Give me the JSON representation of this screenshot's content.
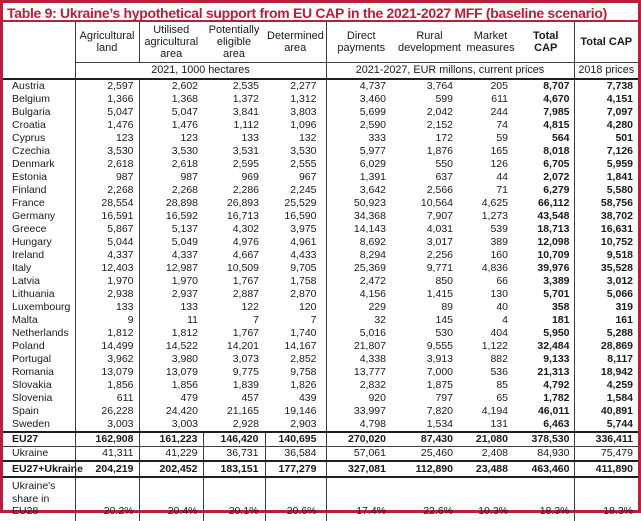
{
  "title": "Table 9: Ukraine’s hypothetical support from EU CAP in the 2021-2027 MFF (baseline scenario)",
  "colors": {
    "accent_red": "#b91f38",
    "grid_line": "#3b3b3b",
    "text": "#1a1a1a"
  },
  "table": {
    "column_headers": [
      "Agricultural land",
      "Utilised agricultural area",
      "Potentially eligible area",
      "Determined area",
      "Direct payments",
      "Rural development",
      "Market measures",
      "Total CAP",
      "Total CAP"
    ],
    "unit_headers": [
      "2021, 1000 hectares",
      "2021-2027, EUR millons, current prices",
      "2018 prices"
    ],
    "rows": [
      {
        "kind": "country",
        "label": "Austria",
        "values": [
          "2,597",
          "2,602",
          "2,535",
          "2,277",
          "4,737",
          "3,764",
          "205",
          "8,707",
          "7,738"
        ]
      },
      {
        "kind": "country",
        "label": "Belgium",
        "values": [
          "1,366",
          "1,368",
          "1,372",
          "1,312",
          "3,460",
          "599",
          "611",
          "4,670",
          "4,151"
        ]
      },
      {
        "kind": "country",
        "label": "Bulgaria",
        "values": [
          "5,047",
          "5,047",
          "3,841",
          "3,803",
          "5,699",
          "2,042",
          "244",
          "7,985",
          "7,097"
        ]
      },
      {
        "kind": "country",
        "label": "Croatia",
        "values": [
          "1,476",
          "1,476",
          "1,112",
          "1,096",
          "2,590",
          "2,152",
          "74",
          "4,815",
          "4,280"
        ]
      },
      {
        "kind": "country",
        "label": "Cyprus",
        "values": [
          "123",
          "123",
          "133",
          "132",
          "333",
          "172",
          "59",
          "564",
          "501"
        ]
      },
      {
        "kind": "country",
        "label": "Czechia",
        "values": [
          "3,530",
          "3,530",
          "3,531",
          "3,530",
          "5,977",
          "1,876",
          "165",
          "8,018",
          "7,126"
        ]
      },
      {
        "kind": "country",
        "label": "Denmark",
        "values": [
          "2,618",
          "2,618",
          "2,595",
          "2,555",
          "6,029",
          "550",
          "126",
          "6,705",
          "5,959"
        ]
      },
      {
        "kind": "country",
        "label": "Estonia",
        "values": [
          "987",
          "987",
          "969",
          "967",
          "1,391",
          "637",
          "44",
          "2,072",
          "1,841"
        ]
      },
      {
        "kind": "country",
        "label": "Finland",
        "values": [
          "2,268",
          "2,268",
          "2,286",
          "2,245",
          "3,642",
          "2,566",
          "71",
          "6,279",
          "5,580"
        ]
      },
      {
        "kind": "country",
        "label": "France",
        "values": [
          "28,554",
          "28,898",
          "26,893",
          "25,529",
          "50,923",
          "10,564",
          "4,625",
          "66,112",
          "58,756"
        ]
      },
      {
        "kind": "country",
        "label": "Germany",
        "values": [
          "16,591",
          "16,592",
          "16,713",
          "16,590",
          "34,368",
          "7,907",
          "1,273",
          "43,548",
          "38,702"
        ]
      },
      {
        "kind": "country",
        "label": "Greece",
        "values": [
          "5,867",
          "5,137",
          "4,302",
          "3,975",
          "14,143",
          "4,031",
          "539",
          "18,713",
          "16,631"
        ]
      },
      {
        "kind": "country",
        "label": "Hungary",
        "values": [
          "5,044",
          "5,049",
          "4,976",
          "4,961",
          "8,692",
          "3,017",
          "389",
          "12,098",
          "10,752"
        ]
      },
      {
        "kind": "country",
        "label": "Ireland",
        "values": [
          "4,337",
          "4,337",
          "4,667",
          "4,433",
          "8,294",
          "2,256",
          "160",
          "10,709",
          "9,518"
        ]
      },
      {
        "kind": "country",
        "label": "Italy",
        "values": [
          "12,403",
          "12,987",
          "10,509",
          "9,705",
          "25,369",
          "9,771",
          "4,836",
          "39,976",
          "35,528"
        ]
      },
      {
        "kind": "country",
        "label": "Latvia",
        "values": [
          "1,970",
          "1,970",
          "1,767",
          "1,758",
          "2,472",
          "850",
          "66",
          "3,389",
          "3,012"
        ]
      },
      {
        "kind": "country",
        "label": "Lithuania",
        "values": [
          "2,938",
          "2,937",
          "2,887",
          "2,870",
          "4,156",
          "1,415",
          "130",
          "5,701",
          "5,066"
        ]
      },
      {
        "kind": "country",
        "label": "Luxembourg",
        "values": [
          "133",
          "133",
          "122",
          "120",
          "229",
          "89",
          "40",
          "358",
          "319"
        ]
      },
      {
        "kind": "country",
        "label": "Malta",
        "values": [
          "9",
          "11",
          "7",
          "7",
          "32",
          "145",
          "4",
          "181",
          "161"
        ]
      },
      {
        "kind": "country",
        "label": "Netherlands",
        "values": [
          "1,812",
          "1,812",
          "1,767",
          "1,740",
          "5,016",
          "530",
          "404",
          "5,950",
          "5,288"
        ]
      },
      {
        "kind": "country",
        "label": "Poland",
        "values": [
          "14,499",
          "14,522",
          "14,201",
          "14,167",
          "21,807",
          "9,555",
          "1,122",
          "32,484",
          "28,869"
        ]
      },
      {
        "kind": "country",
        "label": "Portugal",
        "values": [
          "3,962",
          "3,980",
          "3,073",
          "2,852",
          "4,338",
          "3,913",
          "882",
          "9,133",
          "8,117"
        ]
      },
      {
        "kind": "country",
        "label": "Romania",
        "values": [
          "13,079",
          "13,079",
          "9,775",
          "9,758",
          "13,777",
          "7,000",
          "536",
          "21,313",
          "18,942"
        ]
      },
      {
        "kind": "country",
        "label": "Slovakia",
        "values": [
          "1,856",
          "1,856",
          "1,839",
          "1,826",
          "2,832",
          "1,875",
          "85",
          "4,792",
          "4,259"
        ]
      },
      {
        "kind": "country",
        "label": "Slovenia",
        "values": [
          "611",
          "479",
          "457",
          "439",
          "920",
          "797",
          "65",
          "1,782",
          "1,584"
        ]
      },
      {
        "kind": "country",
        "label": "Spain",
        "values": [
          "26,228",
          "24,420",
          "21,165",
          "19,146",
          "33,997",
          "7,820",
          "4,194",
          "46,011",
          "40,891"
        ]
      },
      {
        "kind": "country",
        "label": "Sweden",
        "values": [
          "3,003",
          "3,003",
          "2,928",
          "2,903",
          "4,798",
          "1,534",
          "131",
          "6,463",
          "5,744"
        ]
      },
      {
        "kind": "eu27",
        "label": "EU27",
        "values": [
          "162,908",
          "161,223",
          "146,420",
          "140,695",
          "270,020",
          "87,430",
          "21,080",
          "378,530",
          "336,411"
        ]
      },
      {
        "kind": "ukraine",
        "label": "Ukraine",
        "values": [
          "41,311",
          "41,229",
          "36,731",
          "36,584",
          "57,061",
          "25,460",
          "2,408",
          "84,930",
          "75,479"
        ]
      },
      {
        "kind": "eu27_ukraine",
        "label": "EU27+Ukraine",
        "values": [
          "204,219",
          "202,452",
          "183,151",
          "177,279",
          "327,081",
          "112,890",
          "23,488",
          "463,460",
          "411,890"
        ]
      },
      {
        "kind": "share",
        "label": "Ukraine's share in EU28",
        "values": [
          "20.2%",
          "20.4%",
          "20.1%",
          "20.6%",
          "17.4%",
          "22.6%",
          "10.3%",
          "18.3%",
          "18.3%"
        ]
      }
    ]
  }
}
